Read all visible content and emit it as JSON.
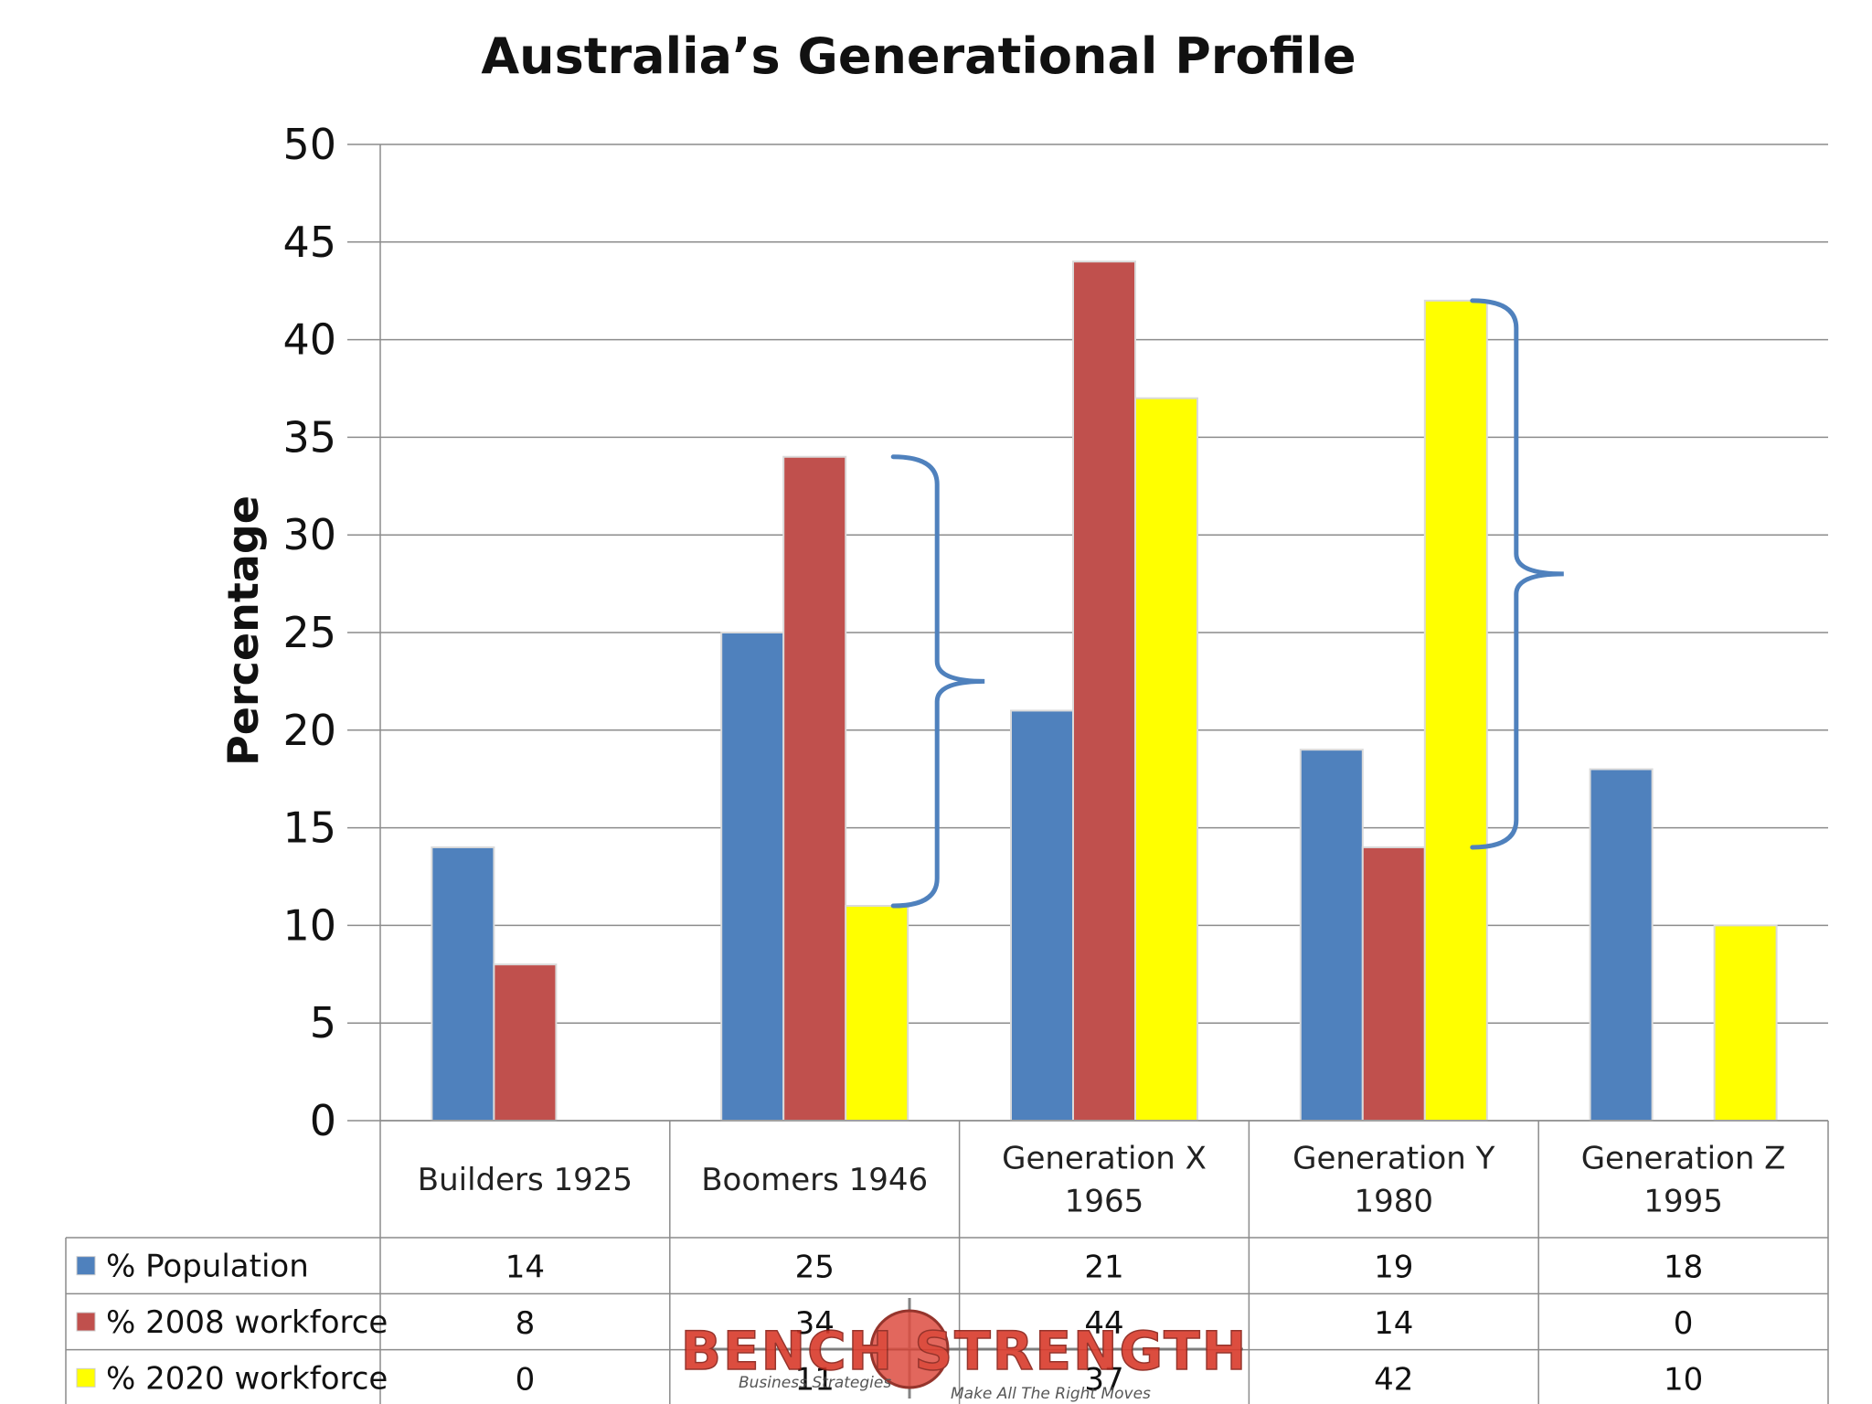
{
  "chart_data": {
    "type": "bar",
    "title": "Australia’s Generational Profile",
    "ylabel": "Percentage",
    "xlabel": "",
    "ylim": [
      0,
      50
    ],
    "yticks": [
      0,
      5,
      10,
      15,
      20,
      25,
      30,
      35,
      40,
      45,
      50
    ],
    "grid": true,
    "categories": [
      [
        "Builders 1925"
      ],
      [
        "Boomers 1946"
      ],
      [
        "Generation X",
        "1965"
      ],
      [
        "Generation Y",
        "1980"
      ],
      [
        "Generation Z",
        "1995"
      ]
    ],
    "series": [
      {
        "name": "% Population",
        "color": "#4f81bd",
        "values": [
          14,
          25,
          21,
          19,
          18
        ]
      },
      {
        "name": "% 2008 workforce",
        "color": "#c0504d",
        "values": [
          8,
          34,
          44,
          14,
          0
        ]
      },
      {
        "name": "% 2020 workforce",
        "color": "#ffff00",
        "values": [
          0,
          11,
          37,
          42,
          10
        ]
      }
    ],
    "legend": "data-table",
    "annotations": [
      {
        "type": "brace",
        "category_index": 1,
        "from": 34,
        "to": 11,
        "color": "#4f81bd"
      },
      {
        "type": "brace",
        "category_index": 3,
        "from": 42,
        "to": 14,
        "color": "#4f81bd"
      }
    ]
  },
  "watermark": {
    "logo_text": "BENCH STRENGTH",
    "tagline_left": "Business Strategies",
    "tagline_right": "Make All The Right Moves"
  }
}
